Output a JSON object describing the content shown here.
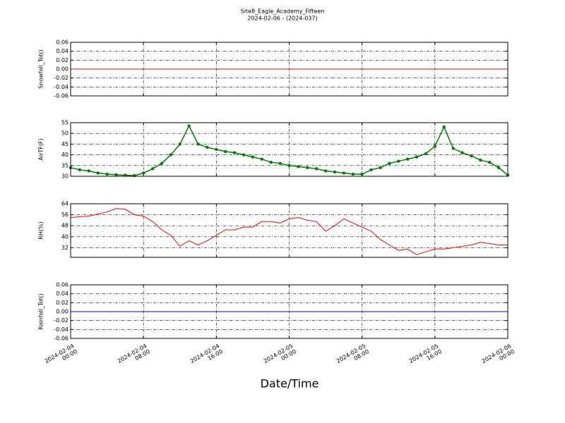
{
  "title": "Site8_Eagle_Academy_Fifteen",
  "subtitle": "2024-02-06 - (2024-037)",
  "xlabel": "Date/Time",
  "chart_data": [
    {
      "type": "line",
      "ylabel": "Snowfall_Tot()",
      "color": "#ff0000",
      "markers": false,
      "grid": true,
      "x": [
        "2024-02-04 00:00",
        "2024-02-06 00:00"
      ],
      "values": [
        0,
        0
      ],
      "ylim": [
        -0.06,
        0.06
      ],
      "yticks": [
        -0.06,
        -0.04,
        -0.02,
        {
          "value": 0,
          "label": "0.00"
        },
        0.02,
        0.04,
        0.06
      ],
      "xlim": [
        "2024-02-04 00:00",
        "2024-02-06 00:00"
      ],
      "xticks": [
        "2024-02-04 00:00",
        "2024-02-04 08:00",
        "2024-02-04 16:00",
        "2024-02-05 00:00",
        "2024-02-05 08:00",
        "2024-02-05 16:00",
        "2024-02-06 00:00"
      ]
    },
    {
      "type": "line",
      "ylabel": "AirTF(F)",
      "color": "#007f00",
      "markers": true,
      "grid": true,
      "x": [
        "2024-02-04 00:00",
        "2024-02-04 01:00",
        "2024-02-04 02:00",
        "2024-02-04 03:00",
        "2024-02-04 04:00",
        "2024-02-04 05:00",
        "2024-02-04 06:00",
        "2024-02-04 07:00",
        "2024-02-04 08:00",
        "2024-02-04 09:00",
        "2024-02-04 10:00",
        "2024-02-04 11:00",
        "2024-02-04 12:00",
        "2024-02-04 13:00",
        "2024-02-04 14:00",
        "2024-02-04 15:00",
        "2024-02-04 16:00",
        "2024-02-04 17:00",
        "2024-02-04 18:00",
        "2024-02-04 19:00",
        "2024-02-04 20:00",
        "2024-02-04 21:00",
        "2024-02-04 22:00",
        "2024-02-04 23:00",
        "2024-02-05 00:00",
        "2024-02-05 01:00",
        "2024-02-05 02:00",
        "2024-02-05 03:00",
        "2024-02-05 04:00",
        "2024-02-05 05:00",
        "2024-02-05 06:00",
        "2024-02-05 07:00",
        "2024-02-05 08:00",
        "2024-02-05 09:00",
        "2024-02-05 10:00",
        "2024-02-05 11:00",
        "2024-02-05 12:00",
        "2024-02-05 13:00",
        "2024-02-05 14:00",
        "2024-02-05 15:00",
        "2024-02-05 16:00",
        "2024-02-05 17:00",
        "2024-02-05 18:00",
        "2024-02-05 19:00",
        "2024-02-05 20:00",
        "2024-02-05 21:00",
        "2024-02-05 22:00",
        "2024-02-05 23:00",
        "2024-02-06 00:00"
      ],
      "values": [
        34,
        33,
        32.5,
        31.5,
        31,
        30.7,
        30.5,
        30.3,
        31.5,
        33.5,
        36,
        40,
        45,
        53.5,
        45,
        43.5,
        42.5,
        41.5,
        41,
        40,
        39,
        38,
        36.5,
        36,
        35,
        34.5,
        34,
        33.5,
        32.5,
        32,
        31.5,
        31,
        31,
        33,
        34,
        36,
        37,
        38,
        39,
        40.5,
        44,
        53,
        43,
        41,
        39.5,
        37.5,
        36.5,
        34,
        30.5
      ],
      "ylim": [
        30,
        55
      ],
      "yticks": [
        30,
        35,
        40,
        45,
        50,
        55
      ],
      "xlim": [
        "2024-02-04 00:00",
        "2024-02-06 00:00"
      ],
      "xticks": [
        "2024-02-04 00:00",
        "2024-02-04 08:00",
        "2024-02-04 16:00",
        "2024-02-05 00:00",
        "2024-02-05 08:00",
        "2024-02-05 16:00",
        "2024-02-06 00:00"
      ]
    },
    {
      "type": "line",
      "ylabel": "RH(%)",
      "color": "#ff0000",
      "markers": false,
      "grid": true,
      "x": [
        "2024-02-04 00:00",
        "2024-02-04 01:00",
        "2024-02-04 02:00",
        "2024-02-04 03:00",
        "2024-02-04 04:00",
        "2024-02-04 05:00",
        "2024-02-04 06:00",
        "2024-02-04 07:00",
        "2024-02-04 08:00",
        "2024-02-04 09:00",
        "2024-02-04 10:00",
        "2024-02-04 11:00",
        "2024-02-04 12:00",
        "2024-02-04 13:00",
        "2024-02-04 14:00",
        "2024-02-04 15:00",
        "2024-02-04 16:00",
        "2024-02-04 17:00",
        "2024-02-04 18:00",
        "2024-02-04 19:00",
        "2024-02-04 20:00",
        "2024-02-04 21:00",
        "2024-02-04 22:00",
        "2024-02-04 23:00",
        "2024-02-05 00:00",
        "2024-02-05 01:00",
        "2024-02-05 02:00",
        "2024-02-05 03:00",
        "2024-02-05 04:00",
        "2024-02-05 05:00",
        "2024-02-05 06:00",
        "2024-02-05 07:00",
        "2024-02-05 08:00",
        "2024-02-05 09:00",
        "2024-02-05 10:00",
        "2024-02-05 11:00",
        "2024-02-05 12:00",
        "2024-02-05 13:00",
        "2024-02-05 14:00",
        "2024-02-05 15:00",
        "2024-02-05 16:00",
        "2024-02-05 17:00",
        "2024-02-05 18:00",
        "2024-02-05 19:00",
        "2024-02-05 20:00",
        "2024-02-05 21:00",
        "2024-02-05 22:00",
        "2024-02-05 23:00",
        "2024-02-06 00:00"
      ],
      "values": [
        54,
        54.5,
        55,
        56.5,
        58,
        60.5,
        60,
        56,
        55,
        51,
        45,
        41,
        33,
        37,
        34,
        37,
        41,
        45,
        45,
        47,
        47,
        51,
        51,
        50,
        53,
        54,
        52,
        51,
        44,
        48,
        53,
        50,
        47,
        44,
        38,
        34,
        30,
        31,
        27,
        29,
        31,
        31,
        32,
        33,
        34,
        36,
        35,
        34,
        34
      ],
      "ylim": [
        25,
        64
      ],
      "yticks": [
        32,
        40,
        48,
        56,
        64
      ],
      "xlim": [
        "2024-02-04 00:00",
        "2024-02-06 00:00"
      ],
      "xticks": [
        "2024-02-04 00:00",
        "2024-02-04 08:00",
        "2024-02-04 16:00",
        "2024-02-05 00:00",
        "2024-02-05 08:00",
        "2024-02-05 16:00",
        "2024-02-06 00:00"
      ]
    },
    {
      "type": "line",
      "ylabel": "Rainfall_Tot()",
      "color": "#0000ff",
      "markers": false,
      "grid": true,
      "x": [
        "2024-02-04 00:00",
        "2024-02-06 00:00"
      ],
      "values": [
        0,
        0
      ],
      "ylim": [
        -0.06,
        0.06
      ],
      "yticks": [
        -0.06,
        -0.04,
        -0.02,
        {
          "value": 0,
          "label": "0.00"
        },
        0.02,
        0.04,
        0.06
      ],
      "xlim": [
        "2024-02-04 00:00",
        "2024-02-06 00:00"
      ],
      "xticks": [
        "2024-02-04 00:00",
        "2024-02-04 08:00",
        "2024-02-04 16:00",
        "2024-02-05 00:00",
        "2024-02-05 08:00",
        "2024-02-05 16:00",
        "2024-02-06 00:00"
      ],
      "show_xtick_labels": true
    }
  ]
}
